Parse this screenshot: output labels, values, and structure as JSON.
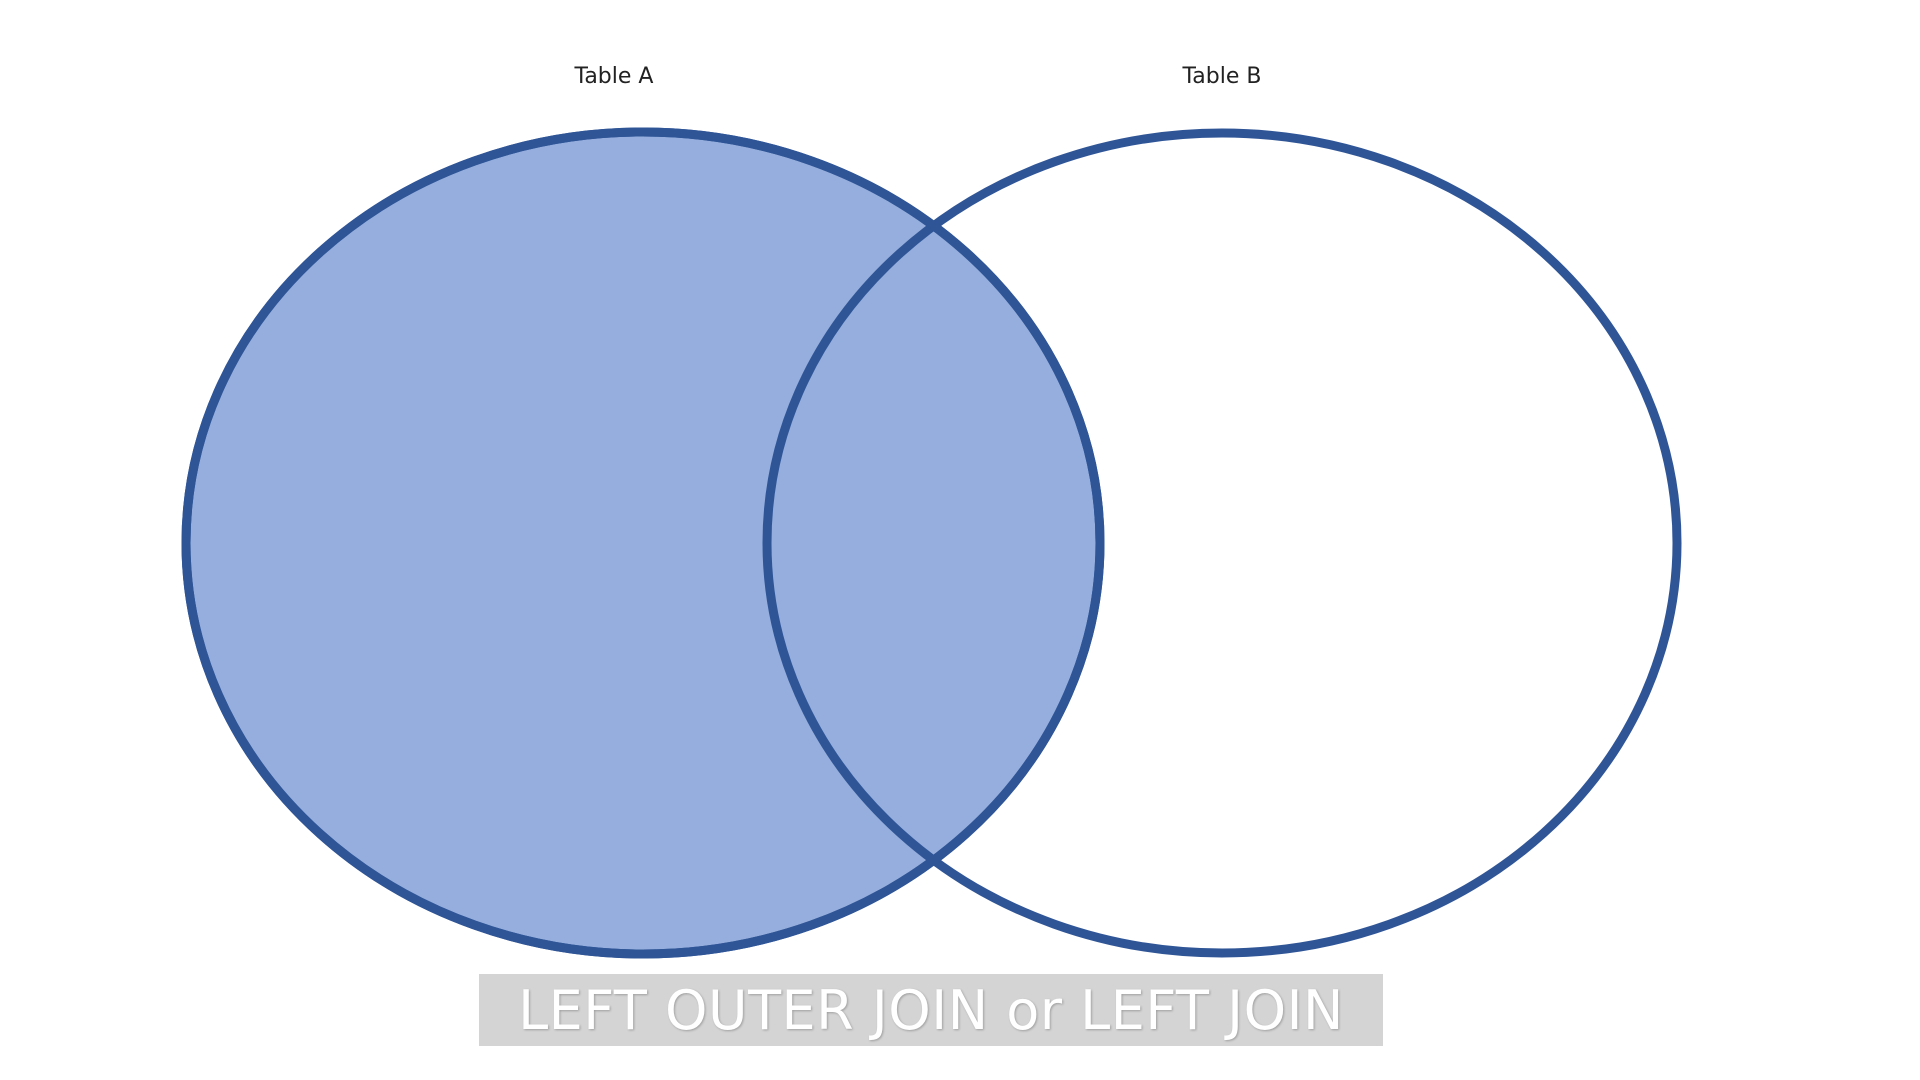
{
  "diagram": {
    "type": "venn",
    "sets": [
      {
        "id": "a",
        "label": "Table A",
        "filled": true
      },
      {
        "id": "b",
        "label": "Table B",
        "filled": false
      }
    ],
    "highlighted_region": "all of Table A (including overlap with Table B)",
    "colors": {
      "fill": "#95aedd",
      "stroke": "#2f5597",
      "caption_background": "#d4d4d4",
      "caption_text": "#ffffff"
    }
  },
  "caption": {
    "text": "LEFT OUTER JOIN or LEFT JOIN"
  }
}
